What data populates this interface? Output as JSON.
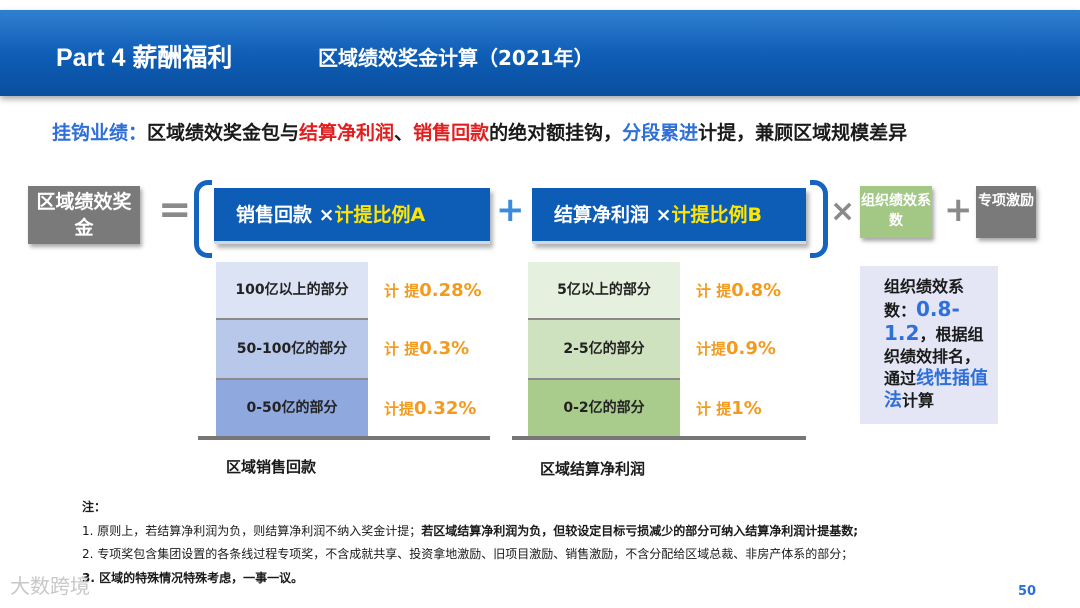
{
  "header": {
    "part": "Part 4   薪酬福利",
    "subtitle": "区域绩效奖金计算（2021年）"
  },
  "intro": {
    "lead": "挂钩业绩：",
    "t1": "区域绩效奖金包与",
    "profit": "结算净利润",
    "sep": "、",
    "sales": "销售回款",
    "t2": "的绝对额挂钩，",
    "tiered": "分段累进",
    "t3": "计提，兼顾区域规模差异"
  },
  "formula": {
    "lhs": "区域绩效奖金",
    "equals": "=",
    "box_a_main": "销售回款 ×",
    "box_a_hl": "计提比例A",
    "plus1": "+",
    "box_b_main": "结算净利润 ×",
    "box_b_hl": "计提比例B",
    "times": "×",
    "org_coef": "组织绩效系数",
    "plus2": "+",
    "special": "专项激励"
  },
  "sales_table": {
    "label": "区域销售回款",
    "rows": [
      {
        "range": "100亿以上的部分",
        "prefix": "计 提",
        "rate": "0.28%",
        "color": "#dbe3f4"
      },
      {
        "range": "50-100亿的部分",
        "prefix": "计 提",
        "rate": "0.3%",
        "color": "#b8c8ea"
      },
      {
        "range": "0-50亿的部分",
        "prefix": "计提",
        "rate": "0.32%",
        "color": "#8fa9df"
      }
    ]
  },
  "profit_table": {
    "label": "区域结算净利润",
    "rows": [
      {
        "range": "5亿以上的部分",
        "prefix": "计 提",
        "rate": "0.8%",
        "color": "#e6f0de"
      },
      {
        "range": "2-5亿的部分",
        "prefix": "计提",
        "rate": "0.9%",
        "color": "#cfe2bf"
      },
      {
        "range": "0-2亿的部分",
        "prefix": "计 提",
        "rate": "1%",
        "color": "#a9cc8c"
      }
    ]
  },
  "side_note": {
    "t1": "组织绩效系数：",
    "range": "0.8-1.2",
    "t2": "，根据组织绩效排名，通过",
    "method": "线性插值法",
    "t3": "计算"
  },
  "notes": {
    "title": "注：",
    "n1_a": "1. 原则上，若结算净利润为负，则结算净利润不纳入奖金计提；",
    "n1_b": "若区域结算净利润为负，但较设定目标亏损减少的部分可纳入结算净利润计提基数;",
    "n2": "2. 专项奖包含集团设置的各条线过程专项奖，不含成就共享、投资拿地激励、旧项目激励、销售激励，不含分配给区域总裁、非房产体系的部分；",
    "n3": "3. 区域的特殊情况特殊考虑，一事一议。"
  },
  "footer": {
    "watermark": "大数跨境",
    "page": "50"
  }
}
